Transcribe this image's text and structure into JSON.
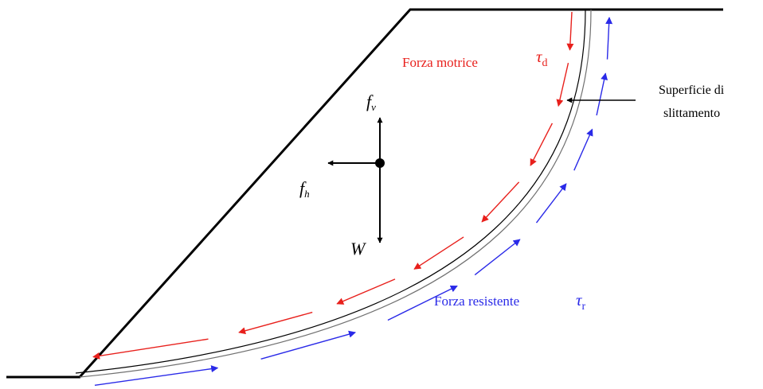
{
  "labels": {
    "driving_force": "Forza motrice",
    "resisting_force": "Forza resistente",
    "tau_d_symbol": "τ",
    "tau_d_sub": "d",
    "tau_r_symbol": "τ",
    "tau_r_sub": "r",
    "slip_surface_line1": "Superficie di",
    "slip_surface_line2": "slittamento",
    "fv_symbol": "f",
    "fv_sub": "v",
    "fh_symbol": "f",
    "fh_sub": "h",
    "weight": "W"
  },
  "colors": {
    "driving": "#e8201c",
    "resisting": "#2a2ae8",
    "outline": "#000000",
    "surface": "#707070"
  }
}
